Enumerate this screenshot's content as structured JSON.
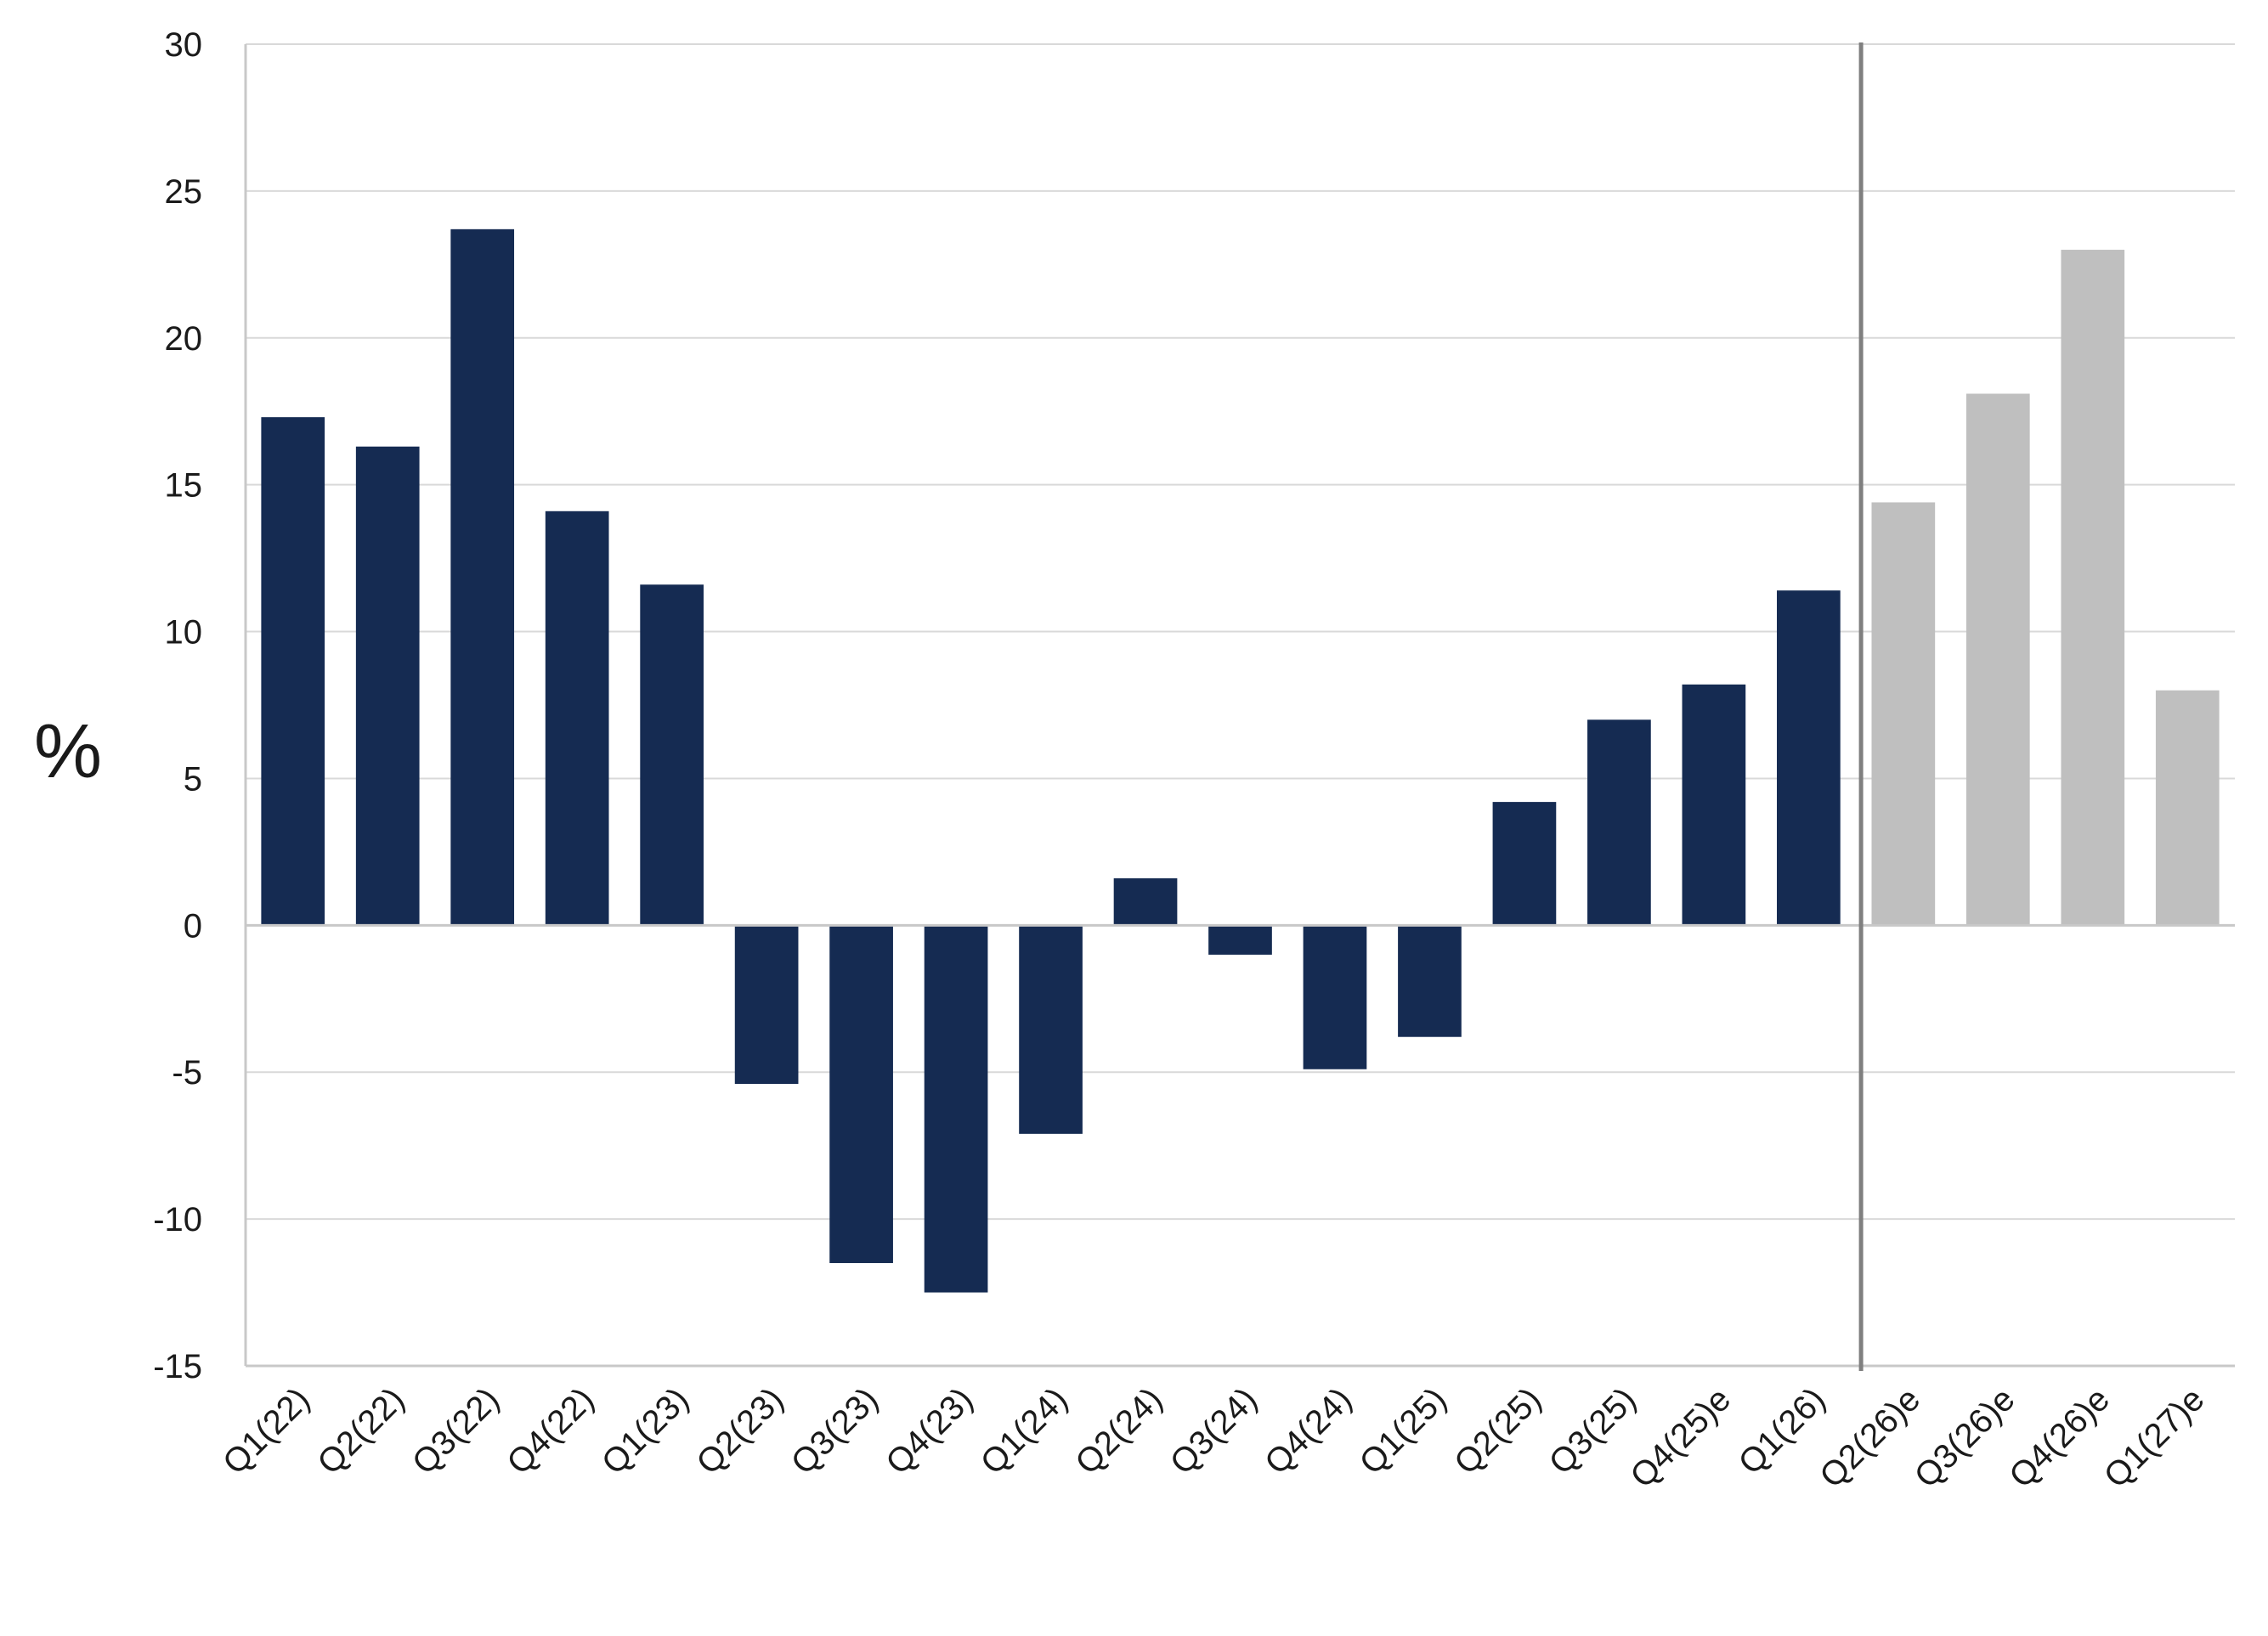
{
  "chart_data": {
    "type": "bar",
    "title": "",
    "xlabel": "",
    "ylabel": "%",
    "ylim": [
      -15,
      30
    ],
    "yticks": [
      30,
      25,
      20,
      15,
      10,
      5,
      0,
      -5,
      -10,
      -15
    ],
    "grid": true,
    "legend": "none",
    "categories": [
      "Q1(22)",
      "Q2(22)",
      "Q3(22)",
      "Q4(22)",
      "Q1(23)",
      "Q2(23)",
      "Q3(23)",
      "Q4(23)",
      "Q1(24)",
      "Q2(24)",
      "Q3(24)",
      "Q4(24)",
      "Q1(25)",
      "Q2(25)",
      "Q3(25)",
      "Q4(25)e",
      "Q1(26)",
      "Q2(26)e",
      "Q3(26)e",
      "Q4(26)e",
      "Q1(27)e"
    ],
    "values": [
      17.3,
      16.3,
      23.7,
      14.1,
      11.6,
      -5.4,
      -11.5,
      -12.5,
      -7.1,
      1.6,
      -1.0,
      -4.9,
      -3.8,
      4.2,
      7.0,
      8.2,
      11.4,
      14.4,
      18.1,
      23.0,
      8.0
    ],
    "bar_colors": [
      "#152b52",
      "#152b52",
      "#152b52",
      "#152b52",
      "#152b52",
      "#152b52",
      "#152b52",
      "#152b52",
      "#152b52",
      "#152b52",
      "#152b52",
      "#152b52",
      "#152b52",
      "#152b52",
      "#152b52",
      "#152b52",
      "#152b52",
      "#bfbfbf",
      "#bfbfbf",
      "#bfbfbf",
      "#bfbfbf"
    ],
    "actual_color": "#152b52",
    "forecast_color": "#bfbfbf",
    "divider": {
      "after_category": "Q1(26)",
      "color": "#7f7f7f"
    }
  }
}
